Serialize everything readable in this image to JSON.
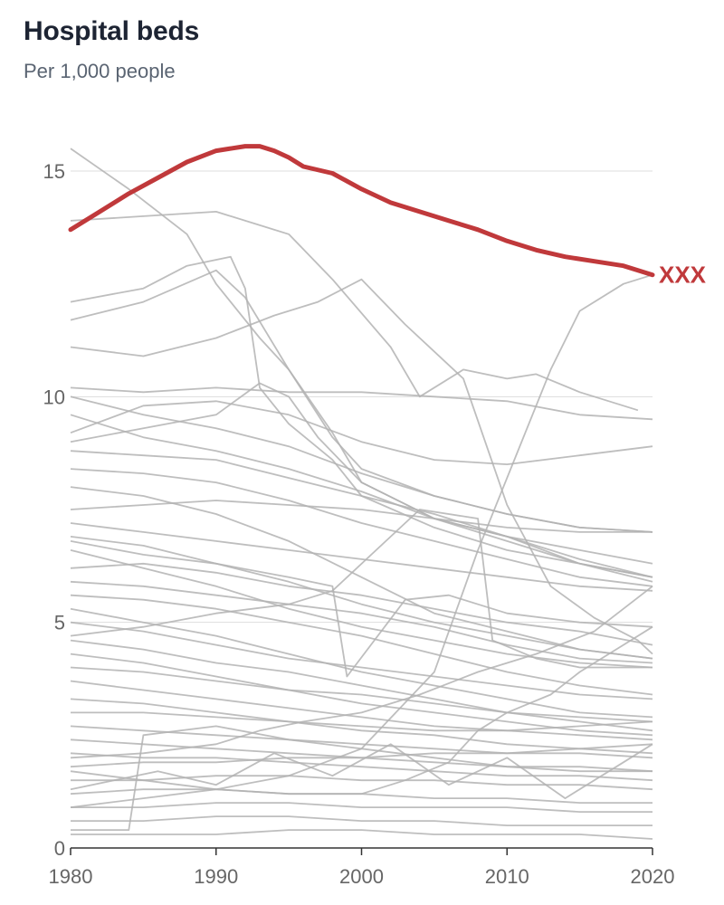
{
  "chart_data": {
    "type": "line",
    "title": "Hospital beds",
    "subtitle": "Per 1,000 people",
    "xlabel": "",
    "ylabel": "",
    "xlim": [
      1980,
      2020
    ],
    "ylim": [
      0,
      15.5
    ],
    "x_ticks": [
      "1980",
      "1990",
      "2000",
      "2010",
      "2020"
    ],
    "y_ticks": [
      "0",
      "5",
      "10",
      "15"
    ],
    "grid": "horizontal",
    "highlight_color": "#c0393b",
    "background_color": "#b3b3b3",
    "highlight": {
      "name": "XXX",
      "x": [
        1980,
        1982,
        1984,
        1986,
        1988,
        1990,
        1992,
        1993,
        1994,
        1995,
        1996,
        1998,
        2000,
        2002,
        2004,
        2006,
        2008,
        2010,
        2012,
        2014,
        2016,
        2018,
        2020
      ],
      "y": [
        13.7,
        14.1,
        14.5,
        14.85,
        15.2,
        15.45,
        15.55,
        15.55,
        15.45,
        15.3,
        15.1,
        14.95,
        14.6,
        14.3,
        14.1,
        13.9,
        13.7,
        13.45,
        13.25,
        13.1,
        13.0,
        12.9,
        12.7
      ]
    },
    "background_series": [
      {
        "x": [
          1980,
          1984,
          1988,
          1990,
          1993,
          1995,
          1998,
          2000,
          2005,
          2010,
          2015,
          2020
        ],
        "y": [
          15.5,
          14.6,
          13.6,
          12.5,
          11.3,
          10.6,
          9.2,
          8.1,
          7.3,
          6.8,
          6.3,
          6.0
        ]
      },
      {
        "x": [
          1980,
          1985,
          1988,
          1991,
          1992,
          1993,
          1995,
          1998,
          2000,
          2005,
          2010,
          2015,
          2020
        ],
        "y": [
          12.1,
          12.4,
          12.9,
          13.1,
          12.4,
          10.2,
          9.4,
          8.6,
          7.8,
          7.1,
          6.6,
          6.3,
          6.0
        ]
      },
      {
        "x": [
          1980,
          1985,
          1990,
          1992,
          1995,
          1998,
          2000,
          2005,
          2010,
          2015,
          2020
        ],
        "y": [
          11.7,
          12.1,
          12.8,
          12.2,
          10.6,
          9.1,
          8.4,
          7.8,
          7.4,
          7.1,
          7.0
        ]
      },
      {
        "x": [
          1980,
          1985,
          1990,
          1994,
          1997,
          2000,
          2003,
          2007,
          2010,
          2013,
          2016,
          2019,
          2020
        ],
        "y": [
          11.1,
          10.9,
          11.3,
          11.8,
          12.1,
          12.6,
          11.6,
          10.4,
          7.6,
          5.8,
          5.1,
          4.6,
          4.3
        ]
      },
      {
        "x": [
          1980,
          1985,
          1990,
          1995,
          1998,
          2002,
          2004,
          2007,
          2010,
          2012,
          2015,
          2019
        ],
        "y": [
          13.9,
          14.0,
          14.1,
          13.6,
          12.6,
          11.1,
          10.0,
          10.6,
          10.4,
          10.5,
          10.1,
          9.7
        ]
      },
      {
        "x": [
          1980,
          1985,
          1990,
          1995,
          2000,
          2005,
          2008,
          2010,
          2013,
          2015,
          2018,
          2020
        ],
        "y": [
          0.9,
          1.1,
          1.3,
          1.6,
          2.2,
          3.9,
          6.6,
          8.2,
          10.6,
          11.9,
          12.5,
          12.7
        ]
      },
      {
        "x": [
          1980,
          1985,
          1990,
          1995,
          2000,
          2005,
          2010,
          2015,
          2020
        ],
        "y": [
          10.2,
          10.1,
          10.2,
          10.1,
          10.1,
          10.0,
          9.9,
          9.6,
          9.5
        ]
      },
      {
        "x": [
          1980,
          1985,
          1990,
          1995,
          2000,
          2005,
          2010,
          2015,
          2020
        ],
        "y": [
          10.0,
          9.6,
          9.3,
          8.9,
          8.3,
          7.8,
          7.4,
          7.1,
          7.0
        ]
      },
      {
        "x": [
          1980,
          1985,
          1990,
          1995,
          2000,
          2005,
          2010,
          2015,
          2020
        ],
        "y": [
          9.6,
          9.1,
          8.8,
          8.4,
          7.9,
          7.3,
          6.9,
          6.3,
          5.9
        ]
      },
      {
        "x": [
          1980,
          1985,
          1990,
          1995,
          2000,
          2005,
          2010,
          2015,
          2020
        ],
        "y": [
          9.2,
          9.8,
          9.9,
          9.6,
          9.0,
          8.6,
          8.5,
          8.7,
          8.9
        ]
      },
      {
        "x": [
          1980,
          1985,
          1990,
          1993,
          1995,
          1997,
          2000,
          2005,
          2010,
          2015,
          2020
        ],
        "y": [
          9.0,
          9.3,
          9.6,
          10.3,
          10.0,
          9.1,
          8.1,
          7.3,
          6.9,
          6.6,
          6.3
        ]
      },
      {
        "x": [
          1980,
          1985,
          1990,
          1995,
          2000,
          2005,
          2010,
          2015,
          2020
        ],
        "y": [
          8.8,
          8.7,
          8.6,
          8.2,
          7.8,
          7.4,
          6.9,
          6.4,
          6.0
        ]
      },
      {
        "x": [
          1980,
          1985,
          1990,
          1995,
          2000,
          2005,
          2010,
          2015,
          2020
        ],
        "y": [
          8.4,
          8.3,
          8.1,
          7.7,
          7.2,
          6.8,
          6.4,
          6.0,
          5.8
        ]
      },
      {
        "x": [
          1980,
          1985,
          1990,
          1995,
          2000,
          2005,
          2010,
          2015,
          2020
        ],
        "y": [
          8.0,
          7.8,
          7.4,
          6.8,
          6.0,
          5.2,
          4.8,
          4.4,
          4.2
        ]
      },
      {
        "x": [
          1980,
          1985,
          1990,
          1995,
          2000,
          2005,
          2010,
          2015,
          2020
        ],
        "y": [
          7.5,
          7.6,
          7.7,
          7.6,
          7.5,
          7.3,
          7.1,
          7.0,
          7.0
        ]
      },
      {
        "x": [
          1980,
          1985,
          1990,
          1995,
          2000,
          2005,
          2010,
          2015,
          2020
        ],
        "y": [
          7.2,
          7.0,
          6.8,
          6.6,
          6.4,
          6.2,
          6.0,
          5.8,
          5.7
        ]
      },
      {
        "x": [
          1980,
          1985,
          1990,
          1995,
          2000,
          2005,
          2010,
          2015,
          2020
        ],
        "y": [
          6.9,
          6.7,
          6.3,
          5.9,
          5.4,
          5.0,
          4.7,
          4.4,
          4.2
        ]
      },
      {
        "x": [
          1980,
          1985,
          1990,
          1995,
          2000,
          2005,
          2010,
          2015,
          2020
        ],
        "y": [
          6.6,
          6.2,
          5.8,
          5.3,
          4.9,
          4.6,
          4.3,
          4.1,
          4.0
        ]
      },
      {
        "x": [
          1980,
          1985,
          1990,
          1995,
          2000,
          2005,
          2010,
          2015,
          2020
        ],
        "y": [
          6.2,
          6.3,
          6.1,
          5.8,
          5.6,
          5.3,
          5.0,
          4.8,
          4.5
        ]
      },
      {
        "x": [
          1980,
          1985,
          1990,
          1995,
          2000,
          2005,
          2010,
          2015,
          2020
        ],
        "y": [
          5.9,
          5.8,
          5.6,
          5.4,
          5.2,
          4.9,
          4.5,
          4.2,
          4.1
        ]
      },
      {
        "x": [
          1980,
          1985,
          1990,
          1995,
          2000,
          2005,
          2010,
          2015,
          2020
        ],
        "y": [
          5.6,
          5.5,
          5.3,
          5.0,
          4.7,
          4.3,
          3.9,
          3.6,
          3.4
        ]
      },
      {
        "x": [
          1980,
          1985,
          1990,
          1995,
          2000,
          2005,
          2010,
          2015,
          2020
        ],
        "y": [
          5.3,
          5.0,
          4.7,
          4.3,
          3.9,
          3.6,
          3.3,
          3.0,
          2.9
        ]
      },
      {
        "x": [
          1980,
          1985,
          1990,
          1995,
          2000,
          2005,
          2010,
          2015,
          2020
        ],
        "y": [
          5.0,
          4.8,
          4.5,
          4.2,
          4.0,
          3.8,
          3.6,
          3.4,
          3.3
        ]
      },
      {
        "x": [
          1980,
          1985,
          1990,
          1995,
          2000,
          2005,
          2010,
          2015,
          2020
        ],
        "y": [
          4.6,
          4.4,
          4.1,
          3.9,
          3.6,
          3.3,
          3.0,
          2.8,
          2.6
        ]
      },
      {
        "x": [
          1980,
          1985,
          1990,
          1995,
          2000,
          2005,
          2010,
          2015,
          2020
        ],
        "y": [
          4.3,
          4.1,
          3.8,
          3.5,
          3.2,
          3.0,
          2.8,
          2.6,
          2.5
        ]
      },
      {
        "x": [
          1980,
          1985,
          1990,
          1995,
          2000,
          2005,
          2010,
          2015,
          2020
        ],
        "y": [
          4.0,
          3.9,
          3.7,
          3.5,
          3.4,
          3.2,
          3.0,
          2.9,
          2.8
        ]
      },
      {
        "x": [
          1980,
          1985,
          1990,
          1995,
          2000,
          2005,
          2010,
          2015,
          2020
        ],
        "y": [
          3.7,
          3.5,
          3.3,
          3.1,
          2.9,
          2.7,
          2.6,
          2.5,
          2.4
        ]
      },
      {
        "x": [
          1980,
          1985,
          1990,
          1995,
          2000,
          2005,
          2010,
          2015,
          2020
        ],
        "y": [
          3.3,
          3.2,
          3.0,
          2.8,
          2.6,
          2.5,
          2.3,
          2.2,
          2.1
        ]
      },
      {
        "x": [
          1980,
          1985,
          1990,
          1995,
          2000,
          2005,
          2010,
          2015,
          2020
        ],
        "y": [
          3.0,
          3.0,
          2.9,
          2.8,
          2.7,
          2.6,
          2.6,
          2.7,
          2.8
        ]
      },
      {
        "x": [
          1980,
          1985,
          1990,
          1995,
          2000,
          2005,
          2010,
          2015,
          2020
        ],
        "y": [
          2.7,
          2.6,
          2.5,
          2.4,
          2.3,
          2.2,
          2.1,
          2.1,
          2.0
        ]
      },
      {
        "x": [
          1980,
          1985,
          1990,
          1995,
          2000,
          2005,
          2010,
          2015,
          2020
        ],
        "y": [
          2.4,
          2.3,
          2.2,
          2.1,
          2.0,
          1.9,
          1.8,
          1.8,
          1.7
        ]
      },
      {
        "x": [
          1980,
          1985,
          1990,
          1995,
          2000,
          2005,
          2010,
          2015,
          2020
        ],
        "y": [
          2.1,
          2.0,
          2.0,
          1.9,
          1.8,
          1.7,
          1.6,
          1.6,
          1.5
        ]
      },
      {
        "x": [
          1980,
          1985,
          1990,
          1995,
          2000,
          2005,
          2010,
          2015,
          2020
        ],
        "y": [
          1.8,
          1.9,
          1.9,
          2.0,
          2.0,
          2.1,
          2.1,
          2.2,
          2.3
        ]
      },
      {
        "x": [
          1980,
          1985,
          1990,
          1995,
          2000,
          2005,
          2010,
          2015,
          2020
        ],
        "y": [
          1.5,
          1.5,
          1.6,
          1.6,
          1.5,
          1.5,
          1.4,
          1.4,
          1.3
        ]
      },
      {
        "x": [
          1980,
          1985,
          1990,
          1995,
          2000,
          2005,
          2010,
          2015,
          2020
        ],
        "y": [
          1.2,
          1.3,
          1.3,
          1.2,
          1.2,
          1.1,
          1.1,
          1.0,
          1.0
        ]
      },
      {
        "x": [
          1980,
          1985,
          1990,
          1995,
          2000,
          2005,
          2010,
          2015,
          2020
        ],
        "y": [
          0.9,
          0.9,
          1.0,
          1.0,
          0.9,
          0.9,
          0.9,
          0.8,
          0.8
        ]
      },
      {
        "x": [
          1980,
          1985,
          1990,
          1995,
          2000,
          2005,
          2010,
          2015,
          2020
        ],
        "y": [
          0.6,
          0.6,
          0.7,
          0.7,
          0.6,
          0.6,
          0.5,
          0.5,
          0.5
        ]
      },
      {
        "x": [
          1980,
          1985,
          1990,
          1995,
          2000,
          2005,
          2010,
          2015,
          2020
        ],
        "y": [
          0.3,
          0.3,
          0.3,
          0.4,
          0.4,
          0.3,
          0.3,
          0.3,
          0.2
        ]
      },
      {
        "x": [
          1980,
          1984,
          1985,
          1990,
          1995,
          2000,
          2005,
          2010,
          2015,
          2020
        ],
        "y": [
          0.4,
          0.4,
          2.5,
          2.7,
          2.4,
          2.2,
          2.0,
          1.8,
          1.7,
          1.7
        ]
      },
      {
        "x": [
          1980,
          1985,
          1990,
          1995,
          1998,
          1999,
          2003,
          2006,
          2008,
          2010,
          2015,
          2020
        ],
        "y": [
          6.8,
          6.5,
          6.3,
          6.0,
          5.8,
          3.8,
          5.5,
          5.6,
          5.4,
          5.2,
          5.0,
          4.9
        ]
      },
      {
        "x": [
          1980,
          1985,
          1990,
          1995,
          1998,
          2001,
          2004,
          2008,
          2009,
          2012,
          2015,
          2020
        ],
        "y": [
          4.7,
          4.9,
          5.2,
          5.4,
          5.7,
          6.6,
          7.5,
          7.3,
          4.6,
          4.2,
          4.0,
          4.0
        ]
      },
      {
        "x": [
          1980,
          1985,
          1990,
          1995,
          2000,
          2003,
          2006,
          2008,
          2010,
          2013,
          2015,
          2018,
          2020
        ],
        "y": [
          1.7,
          1.5,
          1.3,
          1.2,
          1.2,
          1.5,
          1.9,
          2.6,
          3.0,
          3.4,
          3.9,
          4.5,
          4.9
        ]
      },
      {
        "x": [
          1980,
          1985,
          1990,
          1993,
          1996,
          2000,
          2004,
          2008,
          2012,
          2016,
          2020
        ],
        "y": [
          2.0,
          2.1,
          2.3,
          2.6,
          2.8,
          3.0,
          3.4,
          3.9,
          4.3,
          4.8,
          5.8
        ]
      },
      {
        "x": [
          1980,
          1986,
          1990,
          1994,
          1998,
          2002,
          2006,
          2010,
          2014,
          2018,
          2020
        ],
        "y": [
          1.3,
          1.7,
          1.4,
          2.1,
          1.6,
          2.3,
          1.4,
          2.0,
          1.1,
          1.9,
          2.3
        ]
      }
    ]
  }
}
